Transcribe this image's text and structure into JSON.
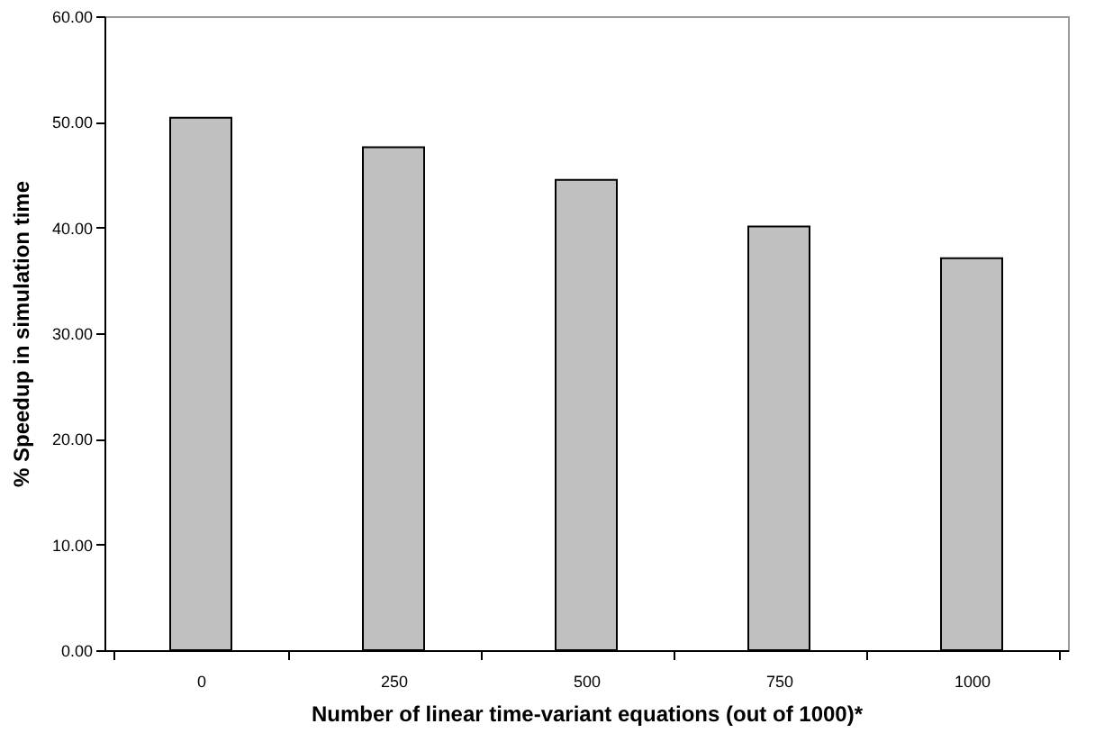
{
  "chart_data": {
    "type": "bar",
    "xlabel": "Number of linear time-variant equations (out of 1000)*",
    "ylabel": "% Speedup in simulation time",
    "categories": [
      "0",
      "250",
      "500",
      "750",
      "1000"
    ],
    "values": [
      50.4,
      47.6,
      44.5,
      40.1,
      37.1
    ],
    "color": "#c0c0c0",
    "ylim": [
      0,
      60
    ],
    "yticks": [
      {
        "value": 0,
        "label": "0.00"
      },
      {
        "value": 10,
        "label": "10.00"
      },
      {
        "value": 20,
        "label": "20.00"
      },
      {
        "value": 30,
        "label": "30.00"
      },
      {
        "value": 40,
        "label": "40.00"
      },
      {
        "value": 50,
        "label": "50.00"
      },
      {
        "value": 60,
        "label": "60.00"
      }
    ],
    "grid": false,
    "legend": false
  }
}
